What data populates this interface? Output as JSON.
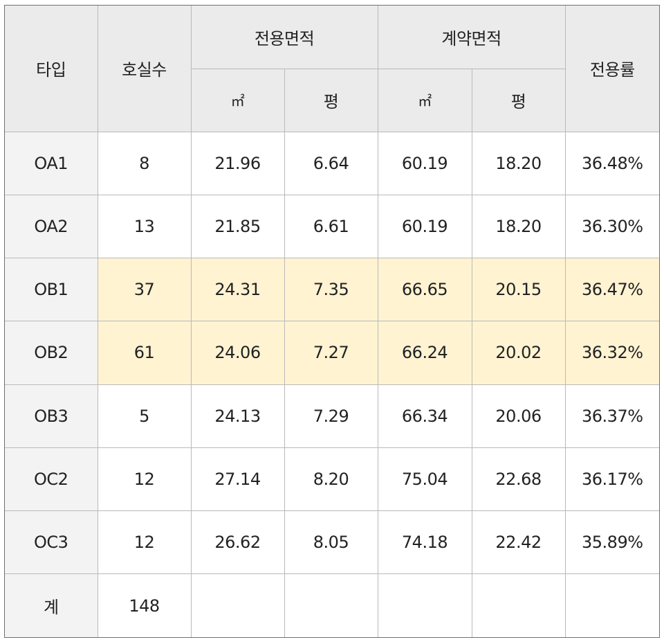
{
  "headers": {
    "type": "타입",
    "units": "호실수",
    "exclusive_area": "전용면적",
    "contract_area": "계약면적",
    "ratio": "전용률",
    "sqm": "㎡",
    "pyeong": "평"
  },
  "rows": [
    {
      "type": "OA1",
      "units": "8",
      "ex_sqm": "21.96",
      "ex_py": "6.64",
      "ct_sqm": "60.19",
      "ct_py": "18.20",
      "ratio": "36.48%",
      "highlight": false
    },
    {
      "type": "OA2",
      "units": "13",
      "ex_sqm": "21.85",
      "ex_py": "6.61",
      "ct_sqm": "60.19",
      "ct_py": "18.20",
      "ratio": "36.30%",
      "highlight": false
    },
    {
      "type": "OB1",
      "units": "37",
      "ex_sqm": "24.31",
      "ex_py": "7.35",
      "ct_sqm": "66.65",
      "ct_py": "20.15",
      "ratio": "36.47%",
      "highlight": true
    },
    {
      "type": "OB2",
      "units": "61",
      "ex_sqm": "24.06",
      "ex_py": "7.27",
      "ct_sqm": "66.24",
      "ct_py": "20.02",
      "ratio": "36.32%",
      "highlight": true
    },
    {
      "type": "OB3",
      "units": "5",
      "ex_sqm": "24.13",
      "ex_py": "7.29",
      "ct_sqm": "66.34",
      "ct_py": "20.06",
      "ratio": "36.37%",
      "highlight": false
    },
    {
      "type": "OC2",
      "units": "12",
      "ex_sqm": "27.14",
      "ex_py": "8.20",
      "ct_sqm": "75.04",
      "ct_py": "22.68",
      "ratio": "36.17%",
      "highlight": false
    },
    {
      "type": "OC3",
      "units": "12",
      "ex_sqm": "26.62",
      "ex_py": "8.05",
      "ct_sqm": "74.18",
      "ct_py": "22.42",
      "ratio": "35.89%",
      "highlight": false
    }
  ],
  "total": {
    "label": "계",
    "units": "148"
  },
  "colors": {
    "header_bg": "#ebebeb",
    "type_col_bg": "#f3f3f3",
    "highlight_bg": "#fff3d2",
    "border": "#b9b9b9",
    "text": "#222222"
  }
}
